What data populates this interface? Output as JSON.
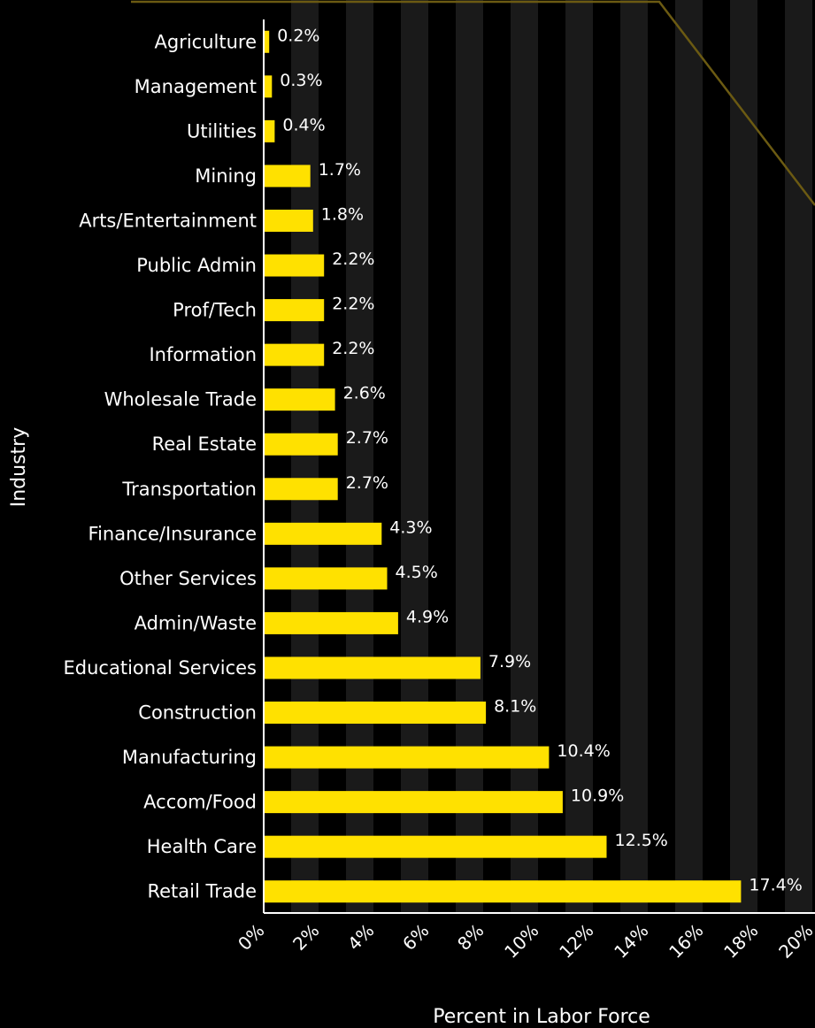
{
  "chart_data": {
    "type": "bar",
    "orientation": "horizontal",
    "xlabel": "Percent in Labor Force",
    "ylabel": "Industry",
    "xlim": [
      0,
      20
    ],
    "x_ticks": [
      "0%",
      "2%",
      "4%",
      "6%",
      "8%",
      "10%",
      "12%",
      "14%",
      "16%",
      "18%",
      "20%"
    ],
    "categories": [
      "Agriculture",
      "Management",
      "Utilities",
      "Mining",
      "Arts/Entertainment",
      "Public Admin",
      "Prof/Tech",
      "Information",
      "Wholesale Trade",
      "Real Estate",
      "Transportation",
      "Finance/Insurance",
      "Other Services",
      "Admin/Waste",
      "Educational Services",
      "Construction",
      "Manufacturing",
      "Accom/Food",
      "Health Care",
      "Retail Trade"
    ],
    "values": [
      0.2,
      0.3,
      0.4,
      1.7,
      1.8,
      2.2,
      2.2,
      2.2,
      2.6,
      2.7,
      2.7,
      4.3,
      4.5,
      4.9,
      7.9,
      8.1,
      10.4,
      10.9,
      12.5,
      17.4
    ],
    "value_labels": [
      "0.2%",
      "0.3%",
      "0.4%",
      "1.7%",
      "1.8%",
      "2.2%",
      "2.2%",
      "2.2%",
      "2.6%",
      "2.7%",
      "2.7%",
      "4.3%",
      "4.5%",
      "4.9%",
      "7.9%",
      "8.1%",
      "10.4%",
      "10.9%",
      "12.5%",
      "17.4%"
    ],
    "grid": "alternating vertical bands",
    "legend": "none"
  },
  "colors": {
    "background": "#000000",
    "bar": "#ffe100",
    "band": "#1a1a1a",
    "text": "#ffffff",
    "axis": "#ffffff",
    "accent_line": "#6b5a12"
  }
}
